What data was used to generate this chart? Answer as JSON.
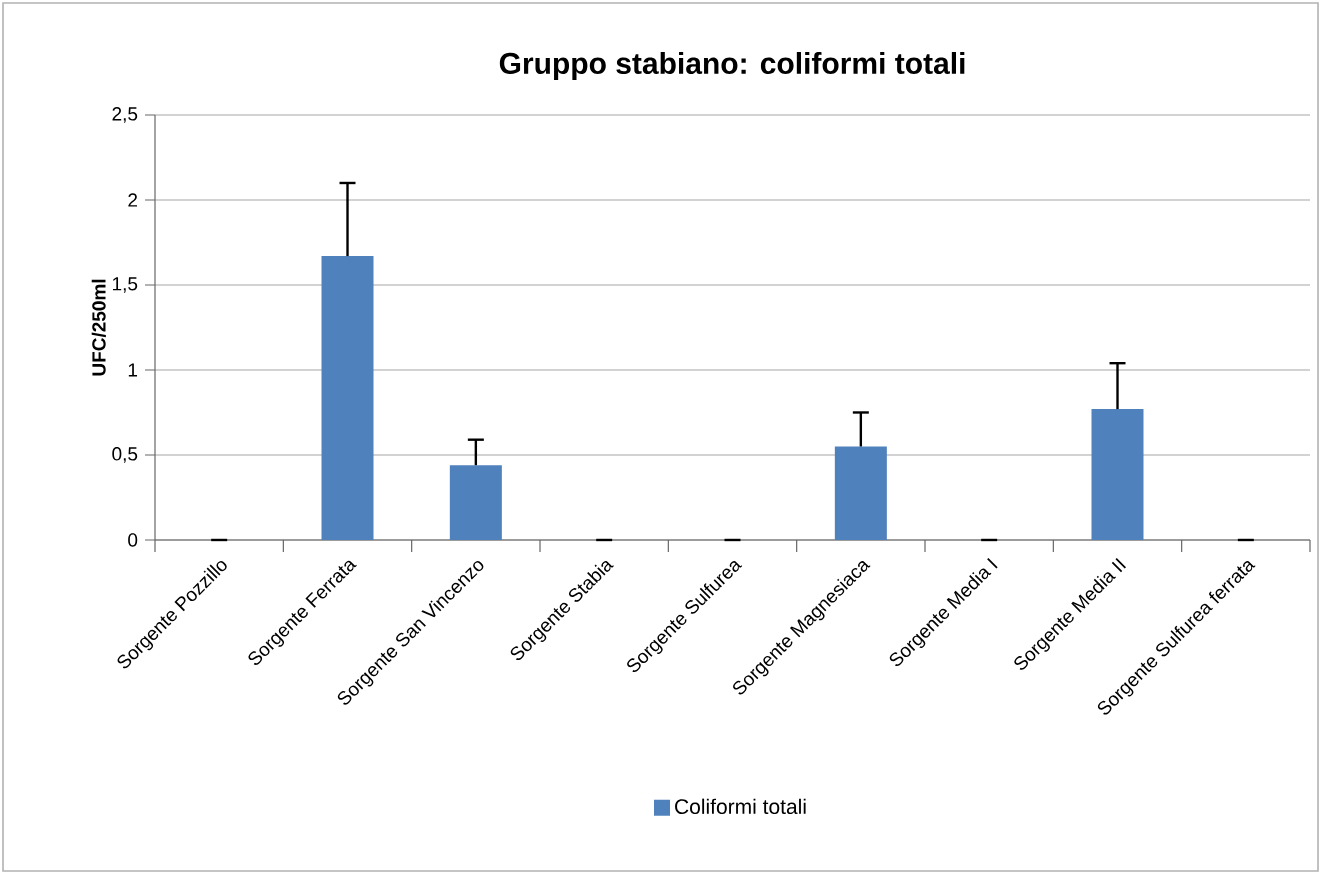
{
  "chart_data": {
    "type": "bar",
    "title": "Gruppo stabiano: coliformi totali",
    "ylabel": "UFC/250ml",
    "categories": [
      "Sorgente Pozzillo",
      "Sorgente Ferrata",
      "Sorgente San Vincenzo",
      "Sorgente Stabia",
      "Sorgente Sulfurea",
      "Sorgente Magnesiaca",
      "Sorgente Media I",
      "Sorgente Media II",
      "Sorgente Sulfurea ferrata"
    ],
    "series": [
      {
        "name": "Coliformi totali",
        "color": "#4f81bd",
        "values": [
          0,
          1.67,
          0.44,
          0,
          0,
          0.55,
          0,
          0.77,
          0
        ],
        "errors": [
          null,
          [
            1.67,
            2.1
          ],
          [
            0.44,
            0.59
          ],
          null,
          null,
          [
            0.55,
            0.75
          ],
          null,
          [
            0.77,
            1.04
          ],
          null
        ]
      }
    ],
    "ylim": [
      0,
      2.5
    ],
    "yticks": [
      0,
      {
        "value": 0.5,
        "label": "0,5"
      },
      1,
      {
        "value": 1.5,
        "label": "1,5"
      },
      2,
      {
        "value": 2.5,
        "label": "2,5"
      }
    ],
    "grid": "y",
    "legend": "bottom"
  }
}
